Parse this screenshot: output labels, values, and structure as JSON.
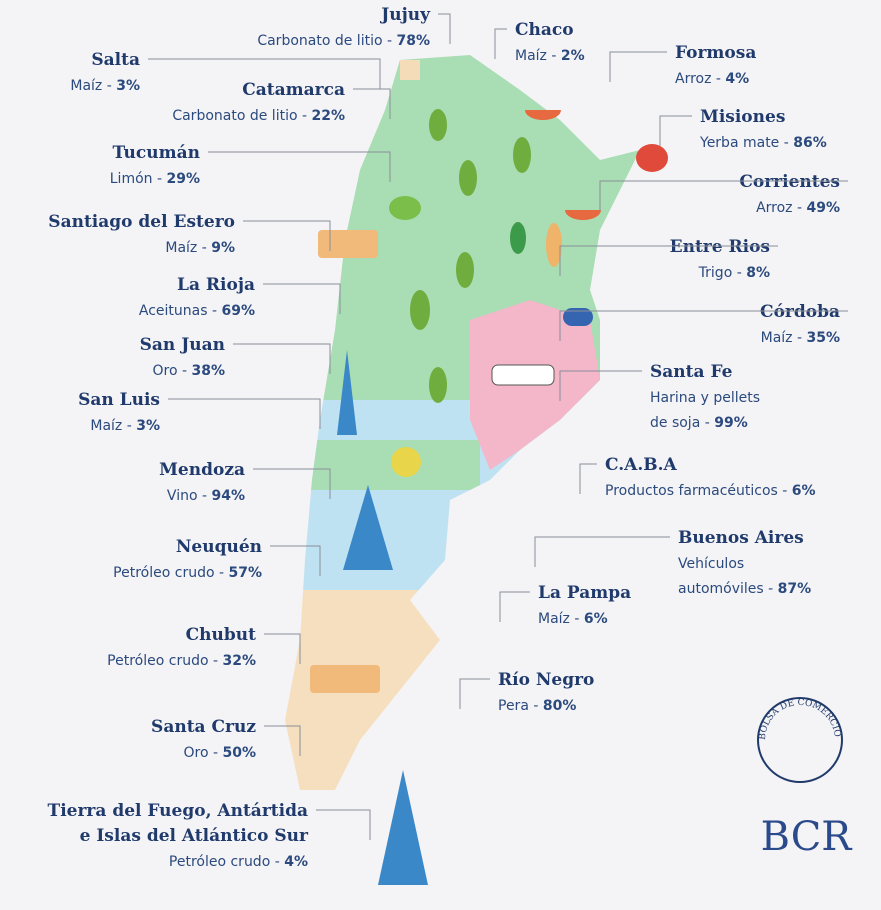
{
  "provinces": [
    {
      "name": [
        "Jujuy"
      ],
      "product": [
        "Carbonato de litio -"
      ],
      "share": "78%"
    },
    {
      "name": [
        "Salta"
      ],
      "product": [
        "Maíz -"
      ],
      "share": "3%"
    },
    {
      "name": [
        "Catamarca"
      ],
      "product": [
        "Carbonato de litio -"
      ],
      "share": "22%"
    },
    {
      "name": [
        "Tucumán"
      ],
      "product": [
        "Limón -"
      ],
      "share": "29%"
    },
    {
      "name": [
        "Santiago del Estero"
      ],
      "product": [
        "Maíz -"
      ],
      "share": "9%"
    },
    {
      "name": [
        "La Rioja"
      ],
      "product": [
        "Aceitunas -"
      ],
      "share": "69%"
    },
    {
      "name": [
        "San Juan"
      ],
      "product": [
        "Oro -"
      ],
      "share": "38%"
    },
    {
      "name": [
        "San Luis"
      ],
      "product": [
        "Maíz -"
      ],
      "share": "3%"
    },
    {
      "name": [
        "Mendoza"
      ],
      "product": [
        "Vino -"
      ],
      "share": "94%"
    },
    {
      "name": [
        "Neuquén"
      ],
      "product": [
        "Petróleo crudo -"
      ],
      "share": "57%"
    },
    {
      "name": [
        "Chubut"
      ],
      "product": [
        "Petróleo crudo -"
      ],
      "share": "32%"
    },
    {
      "name": [
        "Santa Cruz"
      ],
      "product": [
        "Oro -"
      ],
      "share": "50%"
    },
    {
      "name": [
        "Tierra del Fuego, Antártida",
        "e Islas del Atlántico Sur"
      ],
      "product": [
        "Petróleo crudo -"
      ],
      "share": "4%"
    },
    {
      "name": [
        "Chaco"
      ],
      "product": [
        "Maíz -"
      ],
      "share": "2%"
    },
    {
      "name": [
        "Formosa"
      ],
      "product": [
        "Arroz -"
      ],
      "share": "4%"
    },
    {
      "name": [
        "Misiones"
      ],
      "product": [
        "Yerba mate -"
      ],
      "share": "86%"
    },
    {
      "name": [
        "Corrientes"
      ],
      "product": [
        "Arroz -"
      ],
      "share": "49%"
    },
    {
      "name": [
        "Entre Rios"
      ],
      "product": [
        "Trigo -"
      ],
      "share": "8%"
    },
    {
      "name": [
        "Córdoba"
      ],
      "product": [
        "Maíz -"
      ],
      "share": "35%"
    },
    {
      "name": [
        "Santa Fe"
      ],
      "product": [
        "Harina y pellets",
        "de soja -"
      ],
      "share": "99%"
    },
    {
      "name": [
        "C.A.B.A"
      ],
      "product": [
        "Productos farmacéuticos -"
      ],
      "share": "6%"
    },
    {
      "name": [
        "Buenos Aires"
      ],
      "product": [
        "Vehículos",
        "automóviles -"
      ],
      "share": "87%"
    },
    {
      "name": [
        "La Pampa"
      ],
      "product": [
        "Maíz -"
      ],
      "share": "6%"
    },
    {
      "name": [
        "Río Negro"
      ],
      "product": [
        "Pera -"
      ],
      "share": "80%"
    }
  ],
  "logo": {
    "seal": "BOLSA DE COMERCIO DE ROSARIO",
    "name": "BCR"
  }
}
